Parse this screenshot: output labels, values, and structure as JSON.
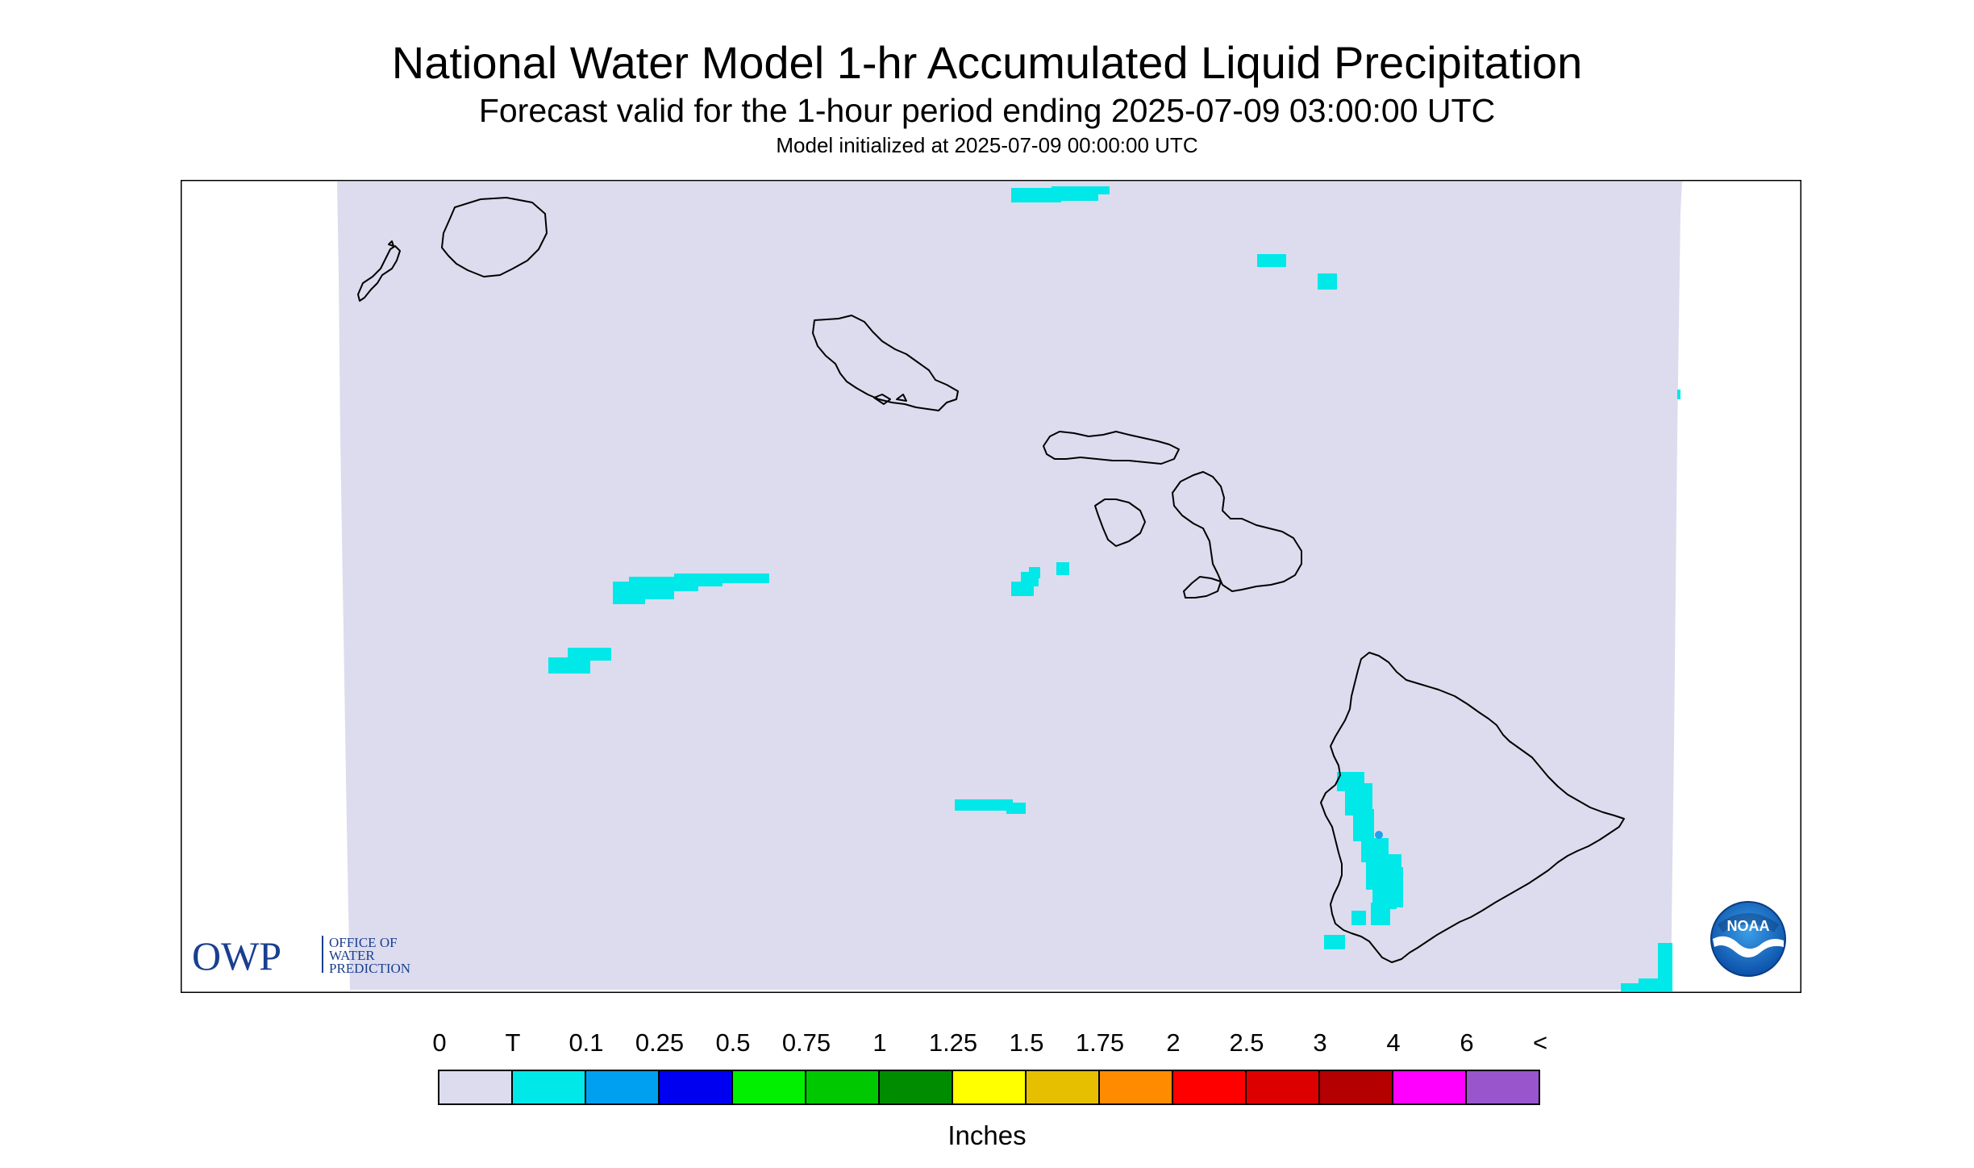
{
  "header": {
    "title": "National Water Model 1-hr Accumulated Liquid Precipitation",
    "subtitle": "Forecast valid for the 1-hour period ending 2025-07-09 03:00:00 UTC",
    "init": "Model initialized at 2025-07-09 00:00:00 UTC"
  },
  "map": {
    "background_color": "#dcdcee",
    "precip_color": "#00e8e8",
    "precip_heavier_color": "#22a0ee",
    "coastline_color": "#000000"
  },
  "legend": {
    "labels": [
      "0",
      "T",
      "0.1",
      "0.25",
      "0.5",
      "0.75",
      "1",
      "1.25",
      "1.5",
      "1.75",
      "2",
      "2.5",
      "3",
      "4",
      "6",
      "<"
    ],
    "colors": [
      "#dcdcee",
      "#00e8e8",
      "#00a0f0",
      "#0000f0",
      "#00f000",
      "#00c800",
      "#008c00",
      "#ffff00",
      "#e6c000",
      "#ff8c00",
      "#ff0000",
      "#dc0000",
      "#b40000",
      "#ff00ff",
      "#9955cc"
    ],
    "units": "Inches"
  },
  "logos": {
    "owp": {
      "mark": "OWP",
      "line1": "OFFICE OF",
      "line2": "WATER",
      "line3": "PREDICTION",
      "color": "#1a3f8f"
    },
    "noaa": {
      "text": "NOAA",
      "color": "#0a4fa8"
    }
  }
}
